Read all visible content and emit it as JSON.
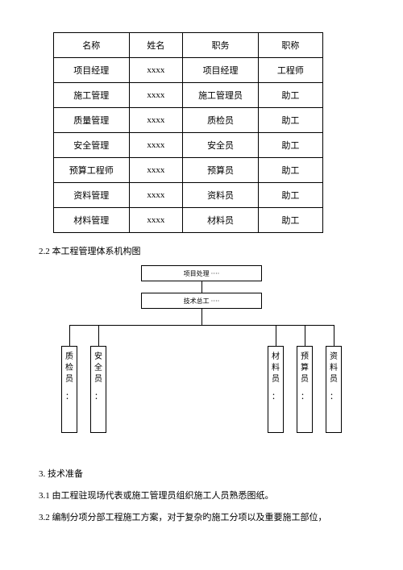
{
  "table": {
    "headers": [
      "名称",
      "姓名",
      "职务",
      "职称"
    ],
    "rows": [
      [
        "项目经理",
        "xxxx",
        "项目经理",
        "工程师"
      ],
      [
        "施工管理",
        "xxxx",
        "施工管理员",
        "助工"
      ],
      [
        "质量管理",
        "xxxx",
        "质检员",
        "助工"
      ],
      [
        "安全管理",
        "xxxx",
        "安全员",
        "助工"
      ],
      [
        "预算工程师",
        "xxxx",
        "预算员",
        "助工"
      ],
      [
        "资料管理",
        "xxxx",
        "资料员",
        "助工"
      ],
      [
        "材料管理",
        "xxxx",
        "材料员",
        "助工"
      ]
    ],
    "col_widths": [
      "28%",
      "20%",
      "28%",
      "24%"
    ]
  },
  "section_title": "2.2 本工程管理体系机构图",
  "org": {
    "top1": "项目处理    ····",
    "top2": "技术总工    ····",
    "leaves": [
      {
        "label": "质检员",
        "suffix": "："
      },
      {
        "label": "安全员",
        "suffix": "："
      },
      {
        "label": "材料员",
        "suffix": "："
      },
      {
        "label": "预算员",
        "suffix": "："
      },
      {
        "label": "资料员",
        "suffix": "："
      }
    ]
  },
  "paragraphs": {
    "h3": "3. 技术准备",
    "p31": "3.1 由工程驻现场代表或施工管理员组织施工人员熟悉图纸。",
    "p32": "3.2 编制分项分部工程施工方案，对于复杂旳施工分项以及重要施工部位，"
  },
  "style": {
    "page_bg": "#ffffff",
    "text_color": "#000000",
    "border_color": "#000000",
    "font_size_body": 11,
    "font_size_org_top": 8,
    "font_size_leaf": 10
  }
}
